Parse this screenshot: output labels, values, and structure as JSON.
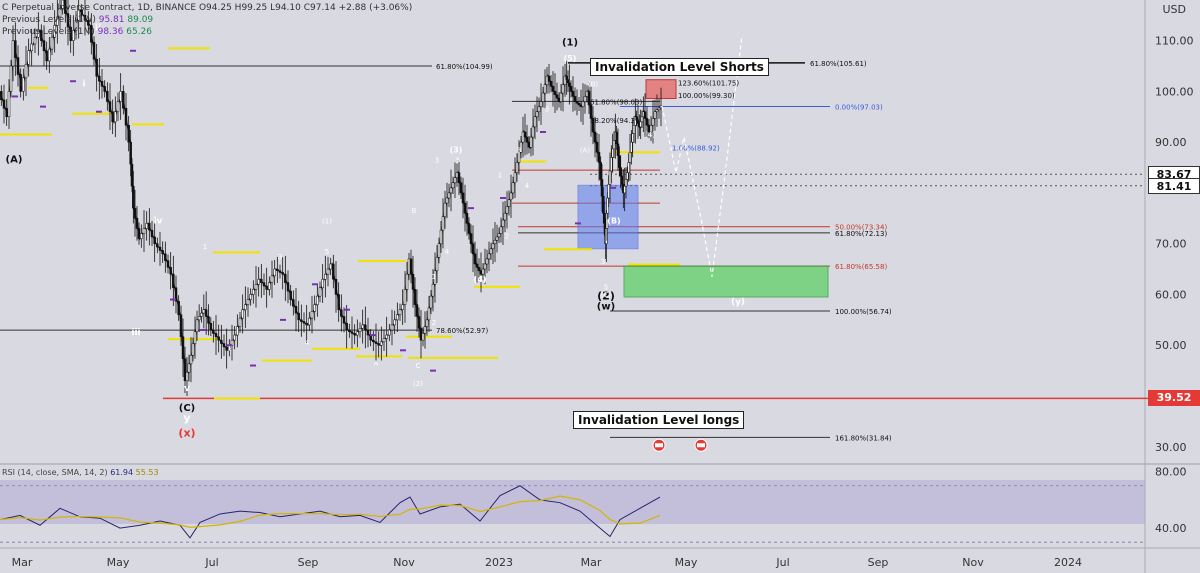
{
  "legend": {
    "title": "C Perpetual Inverse Contract, 1D, BINANCE",
    "ohlc": "O94.25 H99.25 L94.10 C97.14 +2.88 (+3.06%)",
    "row2_label": "Previous Levels (1W)",
    "row2_v1": "95.81",
    "row2_v2": "89.09",
    "row3_label": "Previous Levels (1M)",
    "row3_v1": "98.36",
    "row3_v2": "65.26"
  },
  "rsi_legend": {
    "label": "RSI (14, close, SMA, 14, 2)",
    "v1": "61.94",
    "v2": "55.53"
  },
  "axis_currency": "USD",
  "price_labels": [
    {
      "value": 110,
      "text": "110.00"
    },
    {
      "value": 100,
      "text": "100.00"
    },
    {
      "value": 90,
      "text": "90.00"
    },
    {
      "value": 70,
      "text": "70.00"
    },
    {
      "value": 60,
      "text": "60.00"
    },
    {
      "value": 50,
      "text": "50.00"
    },
    {
      "value": 30,
      "text": "30.00"
    }
  ],
  "rsi_labels": [
    {
      "value": 80,
      "text": "80.00"
    },
    {
      "value": 40,
      "text": "40.00"
    }
  ],
  "price_tags": [
    {
      "value": 83.67,
      "text": "83.67",
      "style": "dark"
    },
    {
      "value": 81.41,
      "text": "81.41",
      "style": "dark"
    },
    {
      "value": 39.52,
      "text": "39.52",
      "style": "red"
    }
  ],
  "time_labels": [
    "Mar",
    "May",
    "Jul",
    "Sep",
    "Nov",
    "2023",
    "Mar",
    "May",
    "Jul",
    "Sep",
    "Nov",
    "2024"
  ],
  "annotations": {
    "invalidation_shorts": "Invalidation Level Shorts",
    "invalidation_longs": "Invalidation Level longs"
  },
  "fib_levels": [
    {
      "text": "61.80%(104.99)",
      "value": 105.0
    },
    {
      "text": "61.80%(105.61)",
      "value": 105.61
    },
    {
      "text": "123.60%(101.75)",
      "value": 101.75
    },
    {
      "text": "100.00%(99.30)",
      "value": 99.3
    },
    {
      "text": "0.00%(97.03)",
      "value": 97.03
    },
    {
      "text": "61.80%(98.03)",
      "value": 98.03
    },
    {
      "text": "78.20%(94.33)",
      "value": 94.33
    },
    {
      "text": "1.00%(88.92)",
      "value": 88.92
    },
    {
      "text": "50.00%(73.34)",
      "value": 73.34
    },
    {
      "text": "61.80%(72.13)",
      "value": 72.13
    },
    {
      "text": "61.80%(65.58)",
      "value": 65.58
    },
    {
      "text": "100.00%(56.74)",
      "value": 56.74
    },
    {
      "text": "78.60%(52.97)",
      "value": 52.97
    },
    {
      "text": "161.80%(31.84)",
      "value": 31.84
    }
  ],
  "wave_labels": [
    "(A)",
    "i",
    "ii",
    "iii",
    "iv",
    "v",
    "(C)",
    "y",
    "(x)",
    "(1)",
    "(2)",
    "(3)",
    "(4)",
    "(5)",
    "(w)",
    "(y)",
    "(x)",
    "(B)"
  ],
  "chart_data": {
    "type": "candlestick",
    "title": "C Perpetual Inverse Contract, 1D, BINANCE",
    "ylim": [
      27,
      118
    ],
    "y_axis_unit": "USD",
    "rsi_ylim": [
      28,
      84
    ],
    "rsi_last": 61.94,
    "rsi_sma_last": 55.53,
    "key_levels": {
      "invalidation_shorts": 105.61,
      "invalidation_longs": 39.52,
      "target_zone": [
        59.5,
        65.6
      ]
    },
    "last_close": 97.14,
    "price_path": [
      [
        0,
        100
      ],
      [
        8,
        95
      ],
      [
        14,
        110
      ],
      [
        22,
        100
      ],
      [
        30,
        108
      ],
      [
        40,
        112
      ],
      [
        48,
        106
      ],
      [
        56,
        113
      ],
      [
        64,
        118
      ],
      [
        72,
        110
      ],
      [
        80,
        116
      ],
      [
        90,
        113
      ],
      [
        98,
        103
      ],
      [
        106,
        100
      ],
      [
        114,
        94
      ],
      [
        122,
        100
      ],
      [
        130,
        90
      ],
      [
        134,
        77
      ],
      [
        140,
        71
      ],
      [
        148,
        74
      ],
      [
        156,
        70
      ],
      [
        164,
        68
      ],
      [
        172,
        64
      ],
      [
        180,
        56
      ],
      [
        186,
        43
      ],
      [
        192,
        48
      ],
      [
        198,
        55
      ],
      [
        205,
        57
      ],
      [
        212,
        53
      ],
      [
        220,
        51
      ],
      [
        228,
        49
      ],
      [
        236,
        52
      ],
      [
        244,
        57
      ],
      [
        252,
        60
      ],
      [
        260,
        63
      ],
      [
        268,
        61
      ],
      [
        276,
        65
      ],
      [
        284,
        64
      ],
      [
        292,
        59
      ],
      [
        300,
        55
      ],
      [
        308,
        54
      ],
      [
        316,
        58
      ],
      [
        324,
        63
      ],
      [
        332,
        66
      ],
      [
        340,
        57
      ],
      [
        348,
        53
      ],
      [
        356,
        52
      ],
      [
        364,
        54
      ],
      [
        372,
        51
      ],
      [
        380,
        50
      ],
      [
        388,
        52
      ],
      [
        396,
        55
      ],
      [
        404,
        58
      ],
      [
        410,
        67
      ],
      [
        416,
        58
      ],
      [
        422,
        51
      ],
      [
        428,
        55
      ],
      [
        434,
        62
      ],
      [
        440,
        70
      ],
      [
        446,
        78
      ],
      [
        452,
        81
      ],
      [
        458,
        84
      ],
      [
        464,
        78
      ],
      [
        470,
        72
      ],
      [
        476,
        66
      ],
      [
        482,
        64
      ],
      [
        488,
        67
      ],
      [
        494,
        70
      ],
      [
        500,
        72
      ],
      [
        506,
        76
      ],
      [
        512,
        80
      ],
      [
        518,
        86
      ],
      [
        524,
        92
      ],
      [
        530,
        89
      ],
      [
        536,
        95
      ],
      [
        542,
        98
      ],
      [
        548,
        103
      ],
      [
        554,
        100
      ],
      [
        560,
        98
      ],
      [
        566,
        103
      ],
      [
        570,
        101
      ],
      [
        576,
        98
      ],
      [
        582,
        97
      ],
      [
        588,
        100
      ],
      [
        594,
        92
      ],
      [
        600,
        86
      ],
      [
        604,
        76
      ],
      [
        606,
        70
      ],
      [
        608,
        79
      ],
      [
        612,
        87
      ],
      [
        616,
        92
      ],
      [
        620,
        85
      ],
      [
        624,
        80
      ],
      [
        628,
        84
      ],
      [
        632,
        90
      ],
      [
        636,
        95
      ],
      [
        640,
        93
      ],
      [
        644,
        96
      ],
      [
        650,
        92
      ],
      [
        656,
        96
      ],
      [
        662,
        97.14
      ]
    ],
    "rsi_path": [
      [
        0,
        46
      ],
      [
        20,
        49
      ],
      [
        40,
        42
      ],
      [
        60,
        54
      ],
      [
        80,
        48
      ],
      [
        100,
        47
      ],
      [
        120,
        40
      ],
      [
        140,
        42
      ],
      [
        160,
        45
      ],
      [
        180,
        42
      ],
      [
        190,
        33
      ],
      [
        200,
        44
      ],
      [
        220,
        50
      ],
      [
        240,
        52
      ],
      [
        260,
        51
      ],
      [
        280,
        48
      ],
      [
        300,
        50
      ],
      [
        320,
        52
      ],
      [
        340,
        48
      ],
      [
        360,
        49
      ],
      [
        380,
        44
      ],
      [
        400,
        58
      ],
      [
        410,
        62
      ],
      [
        420,
        50
      ],
      [
        440,
        55
      ],
      [
        460,
        57
      ],
      [
        480,
        45
      ],
      [
        500,
        63
      ],
      [
        520,
        70
      ],
      [
        540,
        60
      ],
      [
        560,
        58
      ],
      [
        580,
        52
      ],
      [
        600,
        40
      ],
      [
        610,
        34
      ],
      [
        620,
        46
      ],
      [
        640,
        54
      ],
      [
        660,
        61.94
      ]
    ]
  }
}
